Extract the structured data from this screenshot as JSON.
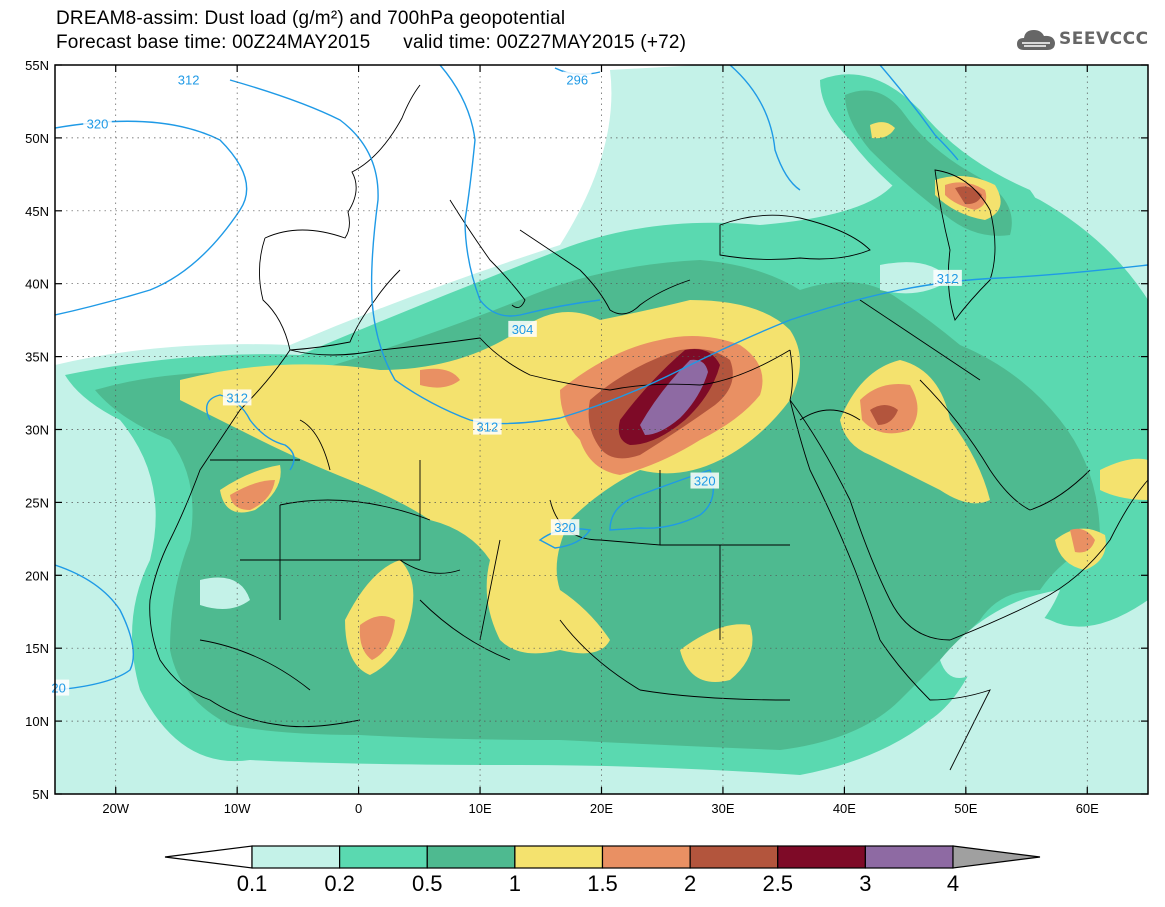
{
  "header": {
    "title_line1": "DREAM8-assim: Dust load (g/m²) and 700hPa geopotential",
    "title_line2": "Forecast base time: 00Z24MAY2015      valid time: 00Z27MAY2015 (+72)",
    "logo_text": "SEEVCCC",
    "logo_icon": "cloud-icon"
  },
  "map": {
    "lon_labels": [
      "20W",
      "10W",
      "0",
      "10E",
      "20E",
      "30E",
      "40E",
      "50E",
      "60E"
    ],
    "lat_labels": [
      "55N",
      "50N",
      "45N",
      "40N",
      "35N",
      "30N",
      "25N",
      "20N",
      "15N",
      "10N",
      "5N"
    ],
    "lon_values": [
      -20,
      -10,
      0,
      10,
      20,
      30,
      40,
      50,
      60
    ],
    "lat_values": [
      55,
      50,
      45,
      40,
      35,
      30,
      25,
      20,
      15,
      10,
      5
    ],
    "extent": {
      "lon_min": -25,
      "lon_max": 65,
      "lat_min": 5,
      "lat_max": 55
    },
    "contour_labels": [
      {
        "text": "312",
        "lon": -14,
        "lat": 54
      },
      {
        "text": "296",
        "lon": 18,
        "lat": 54
      },
      {
        "text": "320",
        "lon": -21.5,
        "lat": 51
      },
      {
        "text": "312",
        "lon": -10,
        "lat": 32.2
      },
      {
        "text": "304",
        "lon": 13.5,
        "lat": 36.9
      },
      {
        "text": "312",
        "lon": 10.6,
        "lat": 30.2
      },
      {
        "text": "312",
        "lon": 48.5,
        "lat": 40.4
      },
      {
        "text": "320",
        "lon": 28.5,
        "lat": 26.5
      },
      {
        "text": "320",
        "lon": 17,
        "lat": 23.3
      },
      {
        "text": "20",
        "lon": -24.7,
        "lat": 12.3
      }
    ],
    "contour_color": "#1f9ae6",
    "coast_color": "#000000"
  },
  "colorbar": {
    "levels": [
      "0.1",
      "0.2",
      "0.5",
      "1",
      "1.5",
      "2",
      "2.5",
      "3",
      "4"
    ],
    "colors": [
      "#ffffff",
      "#c4f2e8",
      "#5ad9b0",
      "#4eba90",
      "#f4e26e",
      "#e99063",
      "#b3553d",
      "#7e0a27",
      "#8e6aa3",
      "#a0a0a0"
    ]
  }
}
